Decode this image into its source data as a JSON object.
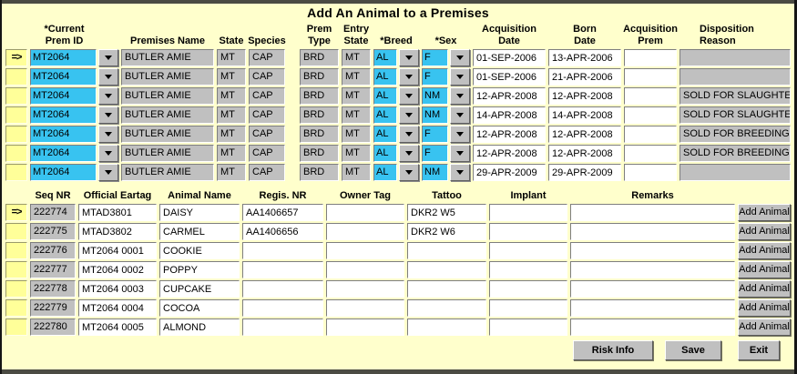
{
  "window": {
    "title": "Add An Animal to a Premises"
  },
  "colors": {
    "background": "#FFFFCC",
    "field_gray": "#C0C0C0",
    "field_cyan": "#38C3F0",
    "indicator_yellow": "#FFFF99",
    "frame_dark": "#4B4B43"
  },
  "premises_grid": {
    "headers": {
      "prem_id_l1": "*Current",
      "prem_id_l2": "Prem ID",
      "premises_name": "Premises Name",
      "state": "State",
      "species": "Species",
      "prem_type_l1": "Prem",
      "prem_type_l2": "Type",
      "entry_state_l1": "Entry",
      "entry_state_l2": "State",
      "breed": "*Breed",
      "sex": "*Sex",
      "acq_date_l1": "Acquisition",
      "acq_date_l2": "Date",
      "born_date_l1": "Born",
      "born_date_l2": "Date",
      "acq_prem_l1": "Acquisition",
      "acq_prem_l2": "Prem",
      "disposition_l1": "Disposition",
      "disposition_l2": "Reason"
    },
    "rows": [
      {
        "marker": "=>",
        "prem_id": "MT2064",
        "premises_name": "BUTLER AMIE",
        "state": "MT",
        "species": "CAP",
        "prem_type": "BRD",
        "entry_state": "MT",
        "breed": "AL",
        "sex": "F",
        "acq_date": "01-SEP-2006",
        "born_date": "13-APR-2006",
        "acq_prem": "",
        "disposition": ""
      },
      {
        "marker": "",
        "prem_id": "MT2064",
        "premises_name": "BUTLER AMIE",
        "state": "MT",
        "species": "CAP",
        "prem_type": "BRD",
        "entry_state": "MT",
        "breed": "AL",
        "sex": "F",
        "acq_date": "01-SEP-2006",
        "born_date": "21-APR-2006",
        "acq_prem": "",
        "disposition": ""
      },
      {
        "marker": "",
        "prem_id": "MT2064",
        "premises_name": "BUTLER AMIE",
        "state": "MT",
        "species": "CAP",
        "prem_type": "BRD",
        "entry_state": "MT",
        "breed": "AL",
        "sex": "NM",
        "acq_date": "12-APR-2008",
        "born_date": "12-APR-2008",
        "acq_prem": "",
        "disposition": "SOLD FOR SLAUGHTER"
      },
      {
        "marker": "",
        "prem_id": "MT2064",
        "premises_name": "BUTLER AMIE",
        "state": "MT",
        "species": "CAP",
        "prem_type": "BRD",
        "entry_state": "MT",
        "breed": "AL",
        "sex": "NM",
        "acq_date": "14-APR-2008",
        "born_date": "14-APR-2008",
        "acq_prem": "",
        "disposition": "SOLD FOR SLAUGHTER"
      },
      {
        "marker": "",
        "prem_id": "MT2064",
        "premises_name": "BUTLER AMIE",
        "state": "MT",
        "species": "CAP",
        "prem_type": "BRD",
        "entry_state": "MT",
        "breed": "AL",
        "sex": "F",
        "acq_date": "12-APR-2008",
        "born_date": "12-APR-2008",
        "acq_prem": "",
        "disposition": "SOLD FOR BREEDING"
      },
      {
        "marker": "",
        "prem_id": "MT2064",
        "premises_name": "BUTLER AMIE",
        "state": "MT",
        "species": "CAP",
        "prem_type": "BRD",
        "entry_state": "MT",
        "breed": "AL",
        "sex": "F",
        "acq_date": "12-APR-2008",
        "born_date": "12-APR-2008",
        "acq_prem": "",
        "disposition": "SOLD FOR BREEDING"
      },
      {
        "marker": "",
        "prem_id": "MT2064",
        "premises_name": "BUTLER AMIE",
        "state": "MT",
        "species": "CAP",
        "prem_type": "BRD",
        "entry_state": "MT",
        "breed": "AL",
        "sex": "NM",
        "acq_date": "29-APR-2009",
        "born_date": "29-APR-2009",
        "acq_prem": "",
        "disposition": ""
      }
    ]
  },
  "animals_grid": {
    "headers": {
      "seq_nr": "Seq NR",
      "eartag": "Official Eartag",
      "animal_name": "Animal Name",
      "regis_nr": "Regis. NR",
      "owner_tag": "Owner Tag",
      "tattoo": "Tattoo",
      "implant": "Implant",
      "remarks": "Remarks"
    },
    "add_button": "Add Animal",
    "rows": [
      {
        "marker": "=>",
        "seq_nr": "222774",
        "eartag": "MTAD3801",
        "animal_name": "DAISY",
        "regis_nr": "AA1406657",
        "owner_tag": "",
        "tattoo": "DKR2 W5",
        "implant": "",
        "remarks": ""
      },
      {
        "marker": "",
        "seq_nr": "222775",
        "eartag": "MTAD3802",
        "animal_name": "CARMEL",
        "regis_nr": "AA1406656",
        "owner_tag": "",
        "tattoo": "DKR2 W6",
        "implant": "",
        "remarks": ""
      },
      {
        "marker": "",
        "seq_nr": "222776",
        "eartag": "MT2064 0001",
        "animal_name": "COOKIE",
        "regis_nr": "",
        "owner_tag": "",
        "tattoo": "",
        "implant": "",
        "remarks": ""
      },
      {
        "marker": "",
        "seq_nr": "222777",
        "eartag": "MT2064 0002",
        "animal_name": "POPPY",
        "regis_nr": "",
        "owner_tag": "",
        "tattoo": "",
        "implant": "",
        "remarks": ""
      },
      {
        "marker": "",
        "seq_nr": "222778",
        "eartag": "MT2064 0003",
        "animal_name": "CUPCAKE",
        "regis_nr": "",
        "owner_tag": "",
        "tattoo": "",
        "implant": "",
        "remarks": ""
      },
      {
        "marker": "",
        "seq_nr": "222779",
        "eartag": "MT2064 0004",
        "animal_name": "COCOA",
        "regis_nr": "",
        "owner_tag": "",
        "tattoo": "",
        "implant": "",
        "remarks": ""
      },
      {
        "marker": "",
        "seq_nr": "222780",
        "eartag": "MT2064 0005",
        "animal_name": "ALMOND",
        "regis_nr": "",
        "owner_tag": "",
        "tattoo": "",
        "implant": "",
        "remarks": ""
      }
    ]
  },
  "footer": {
    "risk_info": "Risk Info",
    "save": "Save",
    "exit": "Exit"
  }
}
